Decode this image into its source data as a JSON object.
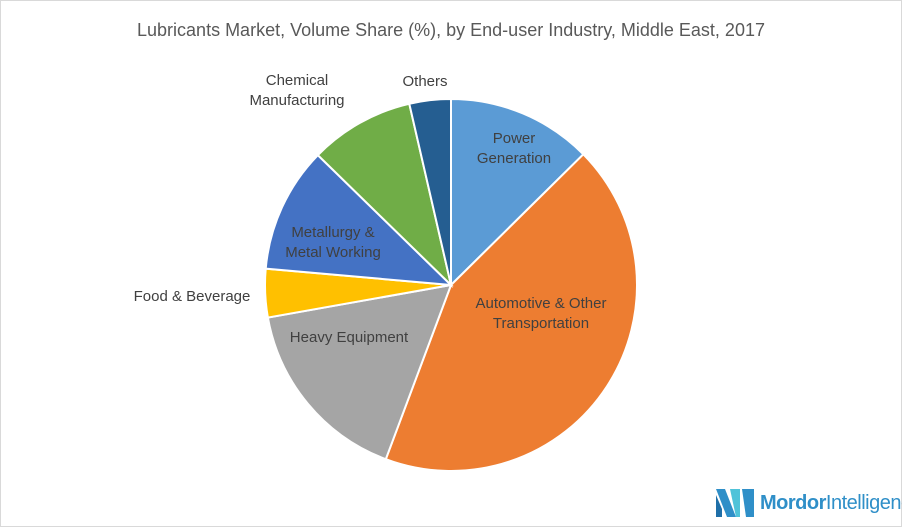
{
  "chart_data": {
    "type": "pie",
    "title": "Lubricants Market, Volume Share (%), by End-user Industry, Middle East, 2017",
    "start_angle": "12 o'clock",
    "direction": "clockwise",
    "slices": [
      {
        "label": "Power Generation",
        "value": 12.6,
        "color": "#5B9BD5"
      },
      {
        "label": "Automotive & Other Transportation",
        "value": 43.1,
        "color": "#ED7D31"
      },
      {
        "label": "Heavy Equipment",
        "value": 16.5,
        "color": "#A5A5A5"
      },
      {
        "label": "Food & Beverage",
        "value": 4.2,
        "color": "#FFC000"
      },
      {
        "label": "Metallurgy & Metal Working",
        "value": 10.9,
        "color": "#4472C4"
      },
      {
        "label": "Chemical Manufacturing",
        "value": 9.1,
        "color": "#70AD47"
      },
      {
        "label": "Others",
        "value": 3.6,
        "color": "#255E91"
      }
    ],
    "legend": "none (data labels)"
  },
  "labels": {
    "power": [
      "Power",
      "Generation"
    ],
    "auto": [
      "Automotive & Other",
      "Transportation"
    ],
    "heavy": "Heavy Equipment",
    "food": "Food & Beverage",
    "metal": [
      "Metallurgy &",
      "Metal Working"
    ],
    "chem": [
      "Chemical",
      "Manufacturing"
    ],
    "others": "Others"
  },
  "logo": {
    "text_bold": "Mordor",
    "text_regular": "Intelligence"
  }
}
